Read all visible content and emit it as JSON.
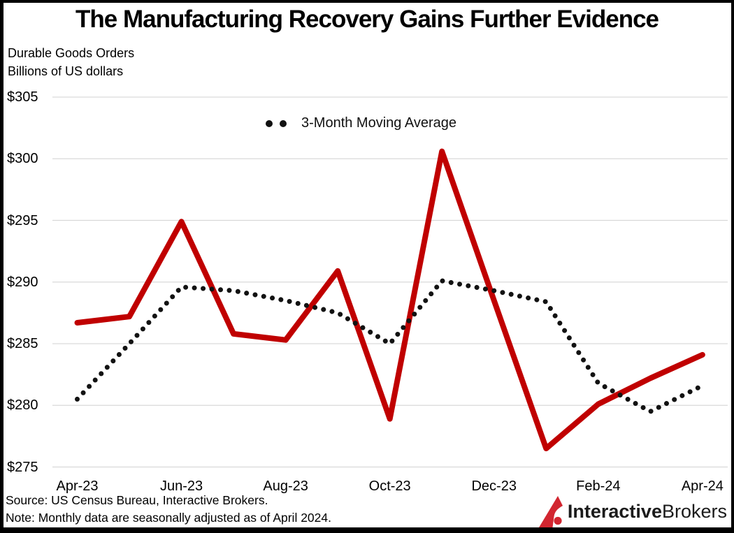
{
  "header": {
    "title": "The Manufacturing Recovery Gains Further Evidence",
    "subtitle_line1": "Durable Goods Orders",
    "subtitle_line2": "Billions of US dollars"
  },
  "legend": {
    "label": "3-Month Moving Average"
  },
  "footer": {
    "source": "Source: US Census Bureau, Interactive Brokers.",
    "note": "Note: Monthly data are seasonally adjusted as of April 2024.",
    "logo_part1": "Interactive",
    "logo_part2": "Brokers"
  },
  "colors": {
    "line_red": "#c00000",
    "ma_dots": "#121212",
    "gridline": "#d9d9d9",
    "logo_red": "#d22630",
    "text": "#000000"
  },
  "chart_data": {
    "type": "line",
    "title": "The Manufacturing Recovery Gains Further Evidence",
    "subtitle": [
      "Durable Goods Orders",
      "Billions of US dollars"
    ],
    "x": [
      "Apr-23",
      "May-23",
      "Jun-23",
      "Jul-23",
      "Aug-23",
      "Sep-23",
      "Oct-23",
      "Nov-23",
      "Dec-23",
      "Jan-24",
      "Feb-24",
      "Mar-24",
      "Apr-24"
    ],
    "series": [
      {
        "name": "Durable Goods Orders",
        "style": "solid",
        "color": "#c00000",
        "values": [
          286.7,
          287.2,
          294.9,
          285.8,
          285.3,
          290.9,
          278.9,
          300.6,
          288.5,
          276.5,
          280.1,
          282.2,
          284.1
        ]
      },
      {
        "name": "3-Month Moving Average",
        "style": "dotted",
        "color": "#121212",
        "values": [
          280.5,
          285.0,
          289.6,
          289.3,
          288.5,
          287.5,
          285.0,
          290.1,
          289.3,
          288.4,
          281.8,
          279.5,
          281.6
        ]
      }
    ],
    "ylim": [
      275,
      305
    ],
    "yticks": [
      {
        "value": 305,
        "label": "$305"
      },
      {
        "value": 300,
        "label": "$300"
      },
      {
        "value": 295,
        "label": "$295"
      },
      {
        "value": 290,
        "label": "$290"
      },
      {
        "value": 285,
        "label": "$285"
      },
      {
        "value": 280,
        "label": "$280"
      },
      {
        "value": 275,
        "label": "$275"
      }
    ],
    "xticks": [
      {
        "index": 0,
        "label": "Apr-23"
      },
      {
        "index": 2,
        "label": "Jun-23"
      },
      {
        "index": 4,
        "label": "Aug-23"
      },
      {
        "index": 6,
        "label": "Oct-23"
      },
      {
        "index": 8,
        "label": "Dec-23"
      },
      {
        "index": 10,
        "label": "Feb-24"
      },
      {
        "index": 12,
        "label": "Apr-24"
      }
    ],
    "grid": "horizontal",
    "legend_position": "top-center",
    "ylabel": "Billions of US dollars"
  }
}
